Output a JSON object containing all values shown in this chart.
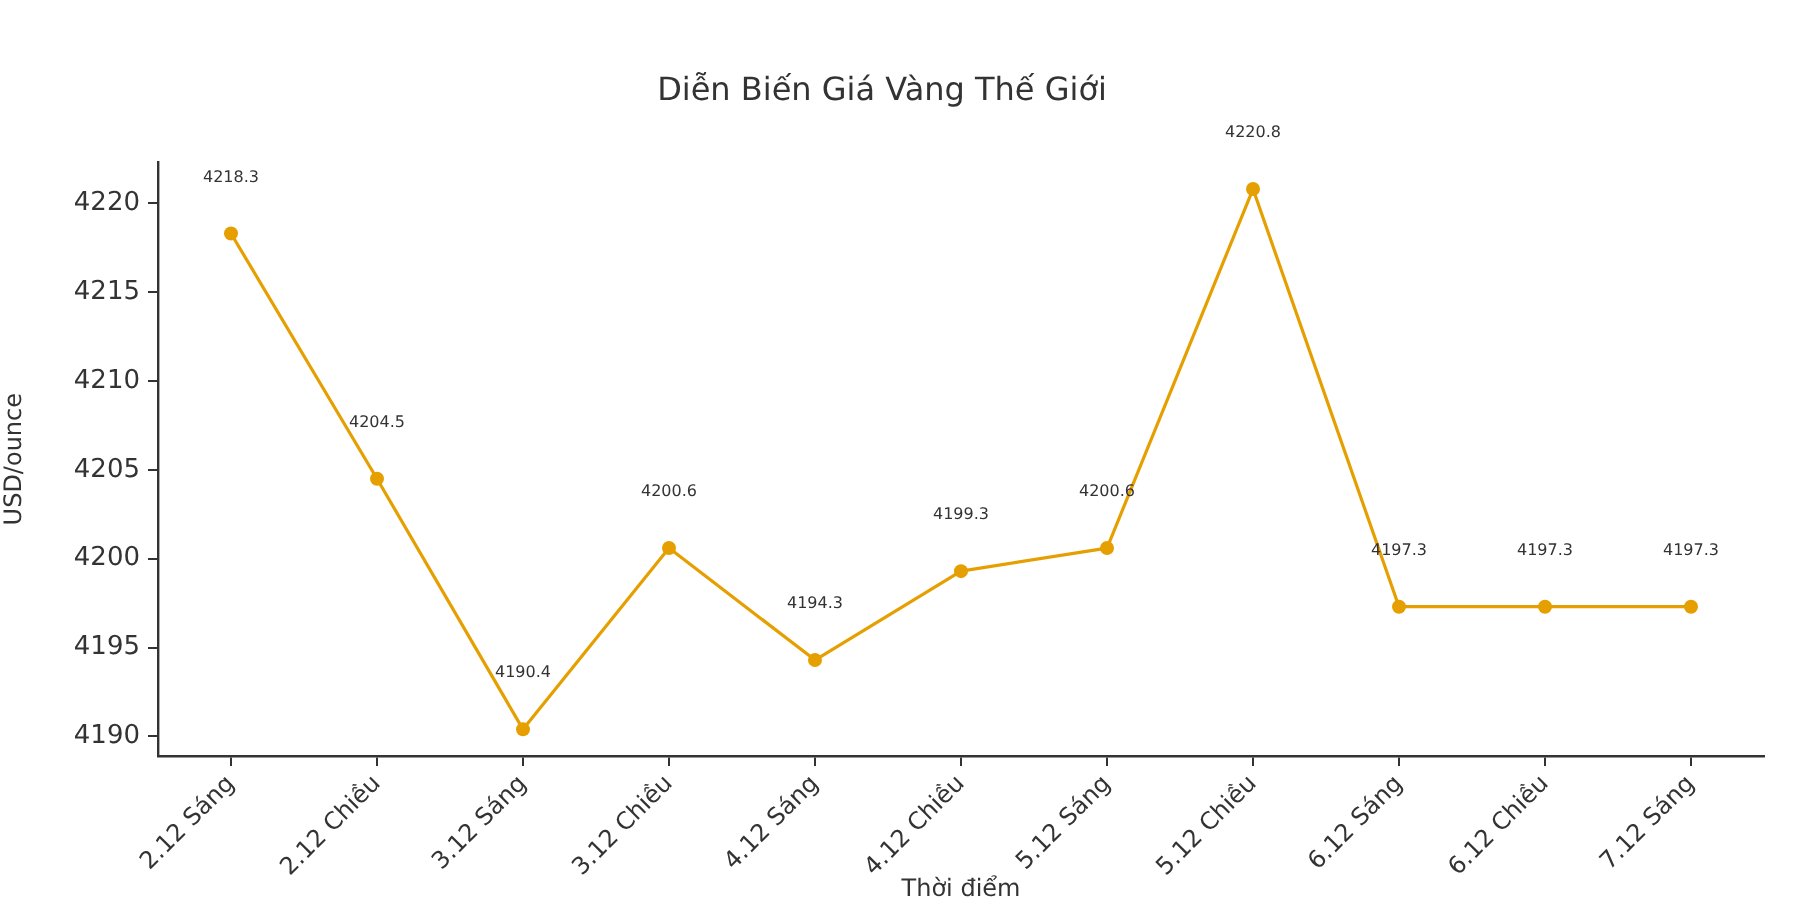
{
  "chart_data": {
    "type": "line",
    "title": "Diễn Biến Giá Vàng Thế Giới",
    "xlabel": "Thời điểm",
    "ylabel": "USD/ounce",
    "categories": [
      "2.12 Sáng",
      "2.12 Chiều",
      "3.12 Sáng",
      "3.12 Chiều",
      "4.12 Sáng",
      "4.12 Chiều",
      "5.12 Sáng",
      "5.12 Chiều",
      "6.12 Sáng",
      "6.12 Chiều",
      "7.12 Sáng"
    ],
    "series": [
      {
        "color": "#e69f00",
        "values": [
          4218.3,
          4204.5,
          4190.4,
          4200.6,
          4194.3,
          4199.3,
          4200.6,
          4220.8,
          4197.3,
          4197.3,
          4197.3
        ]
      }
    ],
    "ylim": [
      4188.9,
      4222.3
    ],
    "yticks": [
      4190,
      4195,
      4200,
      4205,
      4210,
      4215,
      4220
    ],
    "data_labels": true,
    "marker": "circle",
    "line_style": "solid"
  }
}
